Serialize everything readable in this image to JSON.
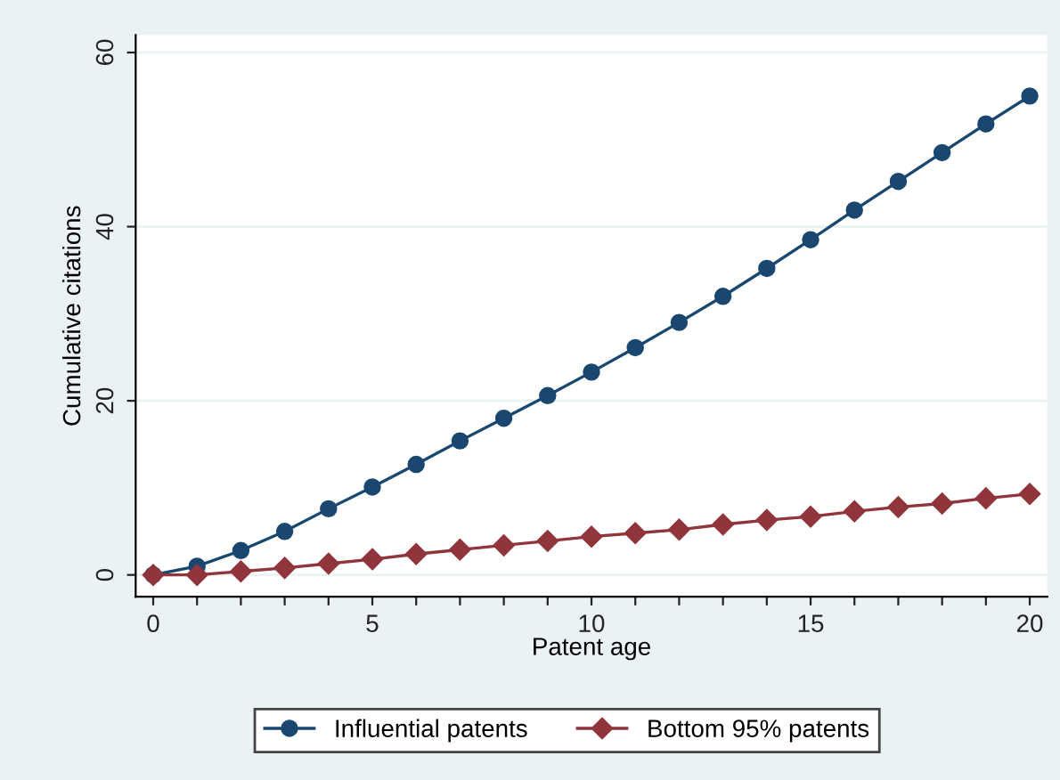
{
  "chart_data": {
    "type": "line",
    "xlabel": "Patent age",
    "ylabel": "Cumulative citations",
    "x": [
      0,
      1,
      2,
      3,
      4,
      5,
      6,
      7,
      8,
      9,
      10,
      11,
      12,
      13,
      14,
      15,
      16,
      17,
      18,
      19,
      20
    ],
    "series": [
      {
        "name": "Influential patents",
        "color": "#1a476f",
        "marker": "circle",
        "values": [
          0,
          1.0,
          2.8,
          5.0,
          7.6,
          10.1,
          12.7,
          15.4,
          18.0,
          20.6,
          23.3,
          26.1,
          29.0,
          32.0,
          35.2,
          38.5,
          41.9,
          45.2,
          48.5,
          51.8,
          55.0
        ]
      },
      {
        "name": "Bottom 95% patents",
        "color": "#90353b",
        "marker": "diamond",
        "values": [
          0,
          0,
          0.4,
          0.8,
          1.3,
          1.8,
          2.4,
          2.9,
          3.4,
          3.9,
          4.4,
          4.8,
          5.2,
          5.8,
          6.3,
          6.7,
          7.3,
          7.8,
          8.2,
          8.8,
          9.3
        ]
      }
    ],
    "xlim": [
      -0.4,
      20.4
    ],
    "ylim": [
      -2.5,
      62
    ],
    "xticks": [
      0,
      {
        "value": 1,
        "label": null
      },
      {
        "value": 2,
        "label": null
      },
      {
        "value": 3,
        "label": null
      },
      {
        "value": 4,
        "label": null
      },
      5,
      {
        "value": 6,
        "label": null
      },
      {
        "value": 7,
        "label": null
      },
      {
        "value": 8,
        "label": null
      },
      {
        "value": 9,
        "label": null
      },
      10,
      {
        "value": 11,
        "label": null
      },
      {
        "value": 12,
        "label": null
      },
      {
        "value": 13,
        "label": null
      },
      {
        "value": 14,
        "label": null
      },
      15,
      {
        "value": 16,
        "label": null
      },
      {
        "value": 17,
        "label": null
      },
      {
        "value": 18,
        "label": null
      },
      {
        "value": 19,
        "label": null
      },
      20
    ],
    "yticks": [
      0,
      20,
      40,
      60
    ],
    "grid": "y",
    "legend": "bottom",
    "line_style": "solid"
  }
}
